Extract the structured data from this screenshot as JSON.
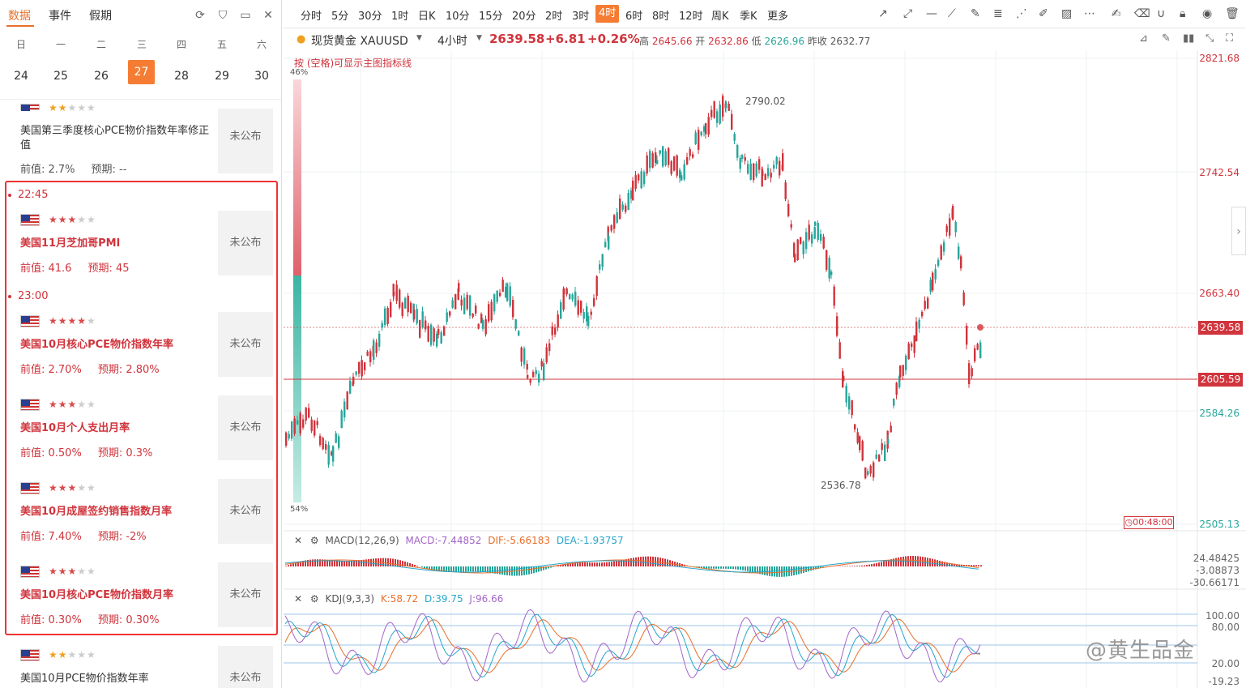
{
  "left": {
    "tabs": [
      {
        "label": "数据"
      },
      {
        "label": "事件"
      },
      {
        "label": "假期"
      }
    ],
    "week_headers": [
      "日",
      "一",
      "二",
      "三",
      "四",
      "五",
      "六"
    ],
    "week_days": [
      "24",
      "25",
      "26",
      "27",
      "28",
      "29",
      "30"
    ],
    "selected_day": "27",
    "prev_event": {
      "name": "美国第三季度核心PCE物价指数年率修正值",
      "prev": "前值: 2.7%",
      "forecast": "预期: --",
      "status": "未公布"
    },
    "groups": [
      {
        "time": "22:45",
        "events": [
          {
            "name": "美国11月芝加哥PMI",
            "prev": "前值: 41.6",
            "forecast": "预期: 45",
            "status": "未公布",
            "stars": 3
          }
        ]
      },
      {
        "time": "23:00",
        "events": [
          {
            "name": "美国10月核心PCE物价指数年率",
            "prev": "前值: 2.70%",
            "forecast": "预期: 2.80%",
            "status": "未公布",
            "stars": 4
          },
          {
            "name": "美国10月个人支出月率",
            "prev": "前值: 0.50%",
            "forecast": "预期: 0.3%",
            "status": "未公布",
            "stars": 3
          },
          {
            "name": "美国10月成屋签约销售指数月率",
            "prev": "前值: 7.40%",
            "forecast": "预期: -2%",
            "status": "未公布",
            "stars": 3
          },
          {
            "name": "美国10月核心PCE物价指数月率",
            "prev": "前值: 0.30%",
            "forecast": "预期: 0.30%",
            "status": "未公布",
            "stars": 3
          }
        ]
      }
    ],
    "next_event": {
      "name": "美国10月PCE物价指数年率",
      "status": "未公布"
    }
  },
  "toolbar": {
    "timeframes": [
      "分时",
      "5分",
      "30分",
      "1时",
      "日K",
      "10分",
      "15分",
      "20分",
      "2时",
      "3时",
      "4时",
      "6时",
      "8时",
      "12时",
      "周K",
      "季K",
      "更多"
    ],
    "active": "4时"
  },
  "info": {
    "symbol": "现货黄金 XAUUSD",
    "period": "4小时",
    "price": "2639.58",
    "change": "+6.81",
    "change_pct": "+0.26%",
    "high_label": "高",
    "high": "2645.66",
    "open_label": "开",
    "open": "2632.86",
    "low_label": "低",
    "low": "2626.96",
    "prevclose_label": "昨收",
    "prevclose": "2632.77"
  },
  "plot": {
    "hint": "按 (空格)可显示主图指标线",
    "pct_top": "46%",
    "pct_bottom": "54%",
    "y_labels": [
      "2821.68",
      "2742.54",
      "2663.40",
      "2584.26",
      "2505.13"
    ],
    "current_price": "2639.58",
    "line_price": "2605.59",
    "high_mark": "2790.02",
    "low_mark": "2536.78",
    "countdown": "00:48:00"
  },
  "macd": {
    "title": "MACD(12,26,9)",
    "macd": "MACD:-7.44852",
    "dif": "DIF:-5.66183",
    "dea": "DEA:-1.93757",
    "y": [
      "24.48425",
      "-3.08873",
      "-30.66171"
    ]
  },
  "kdj": {
    "title": "KDJ(9,3,3)",
    "k": "K:58.72",
    "d": "D:39.75",
    "j": "J:96.66",
    "y": [
      "100.00",
      "80.00",
      "20.00",
      "-19.23"
    ]
  },
  "watermark": "@黄生品金",
  "colors": {
    "up": "#d0343c",
    "down": "#26a69a",
    "accent": "#f57c32"
  }
}
